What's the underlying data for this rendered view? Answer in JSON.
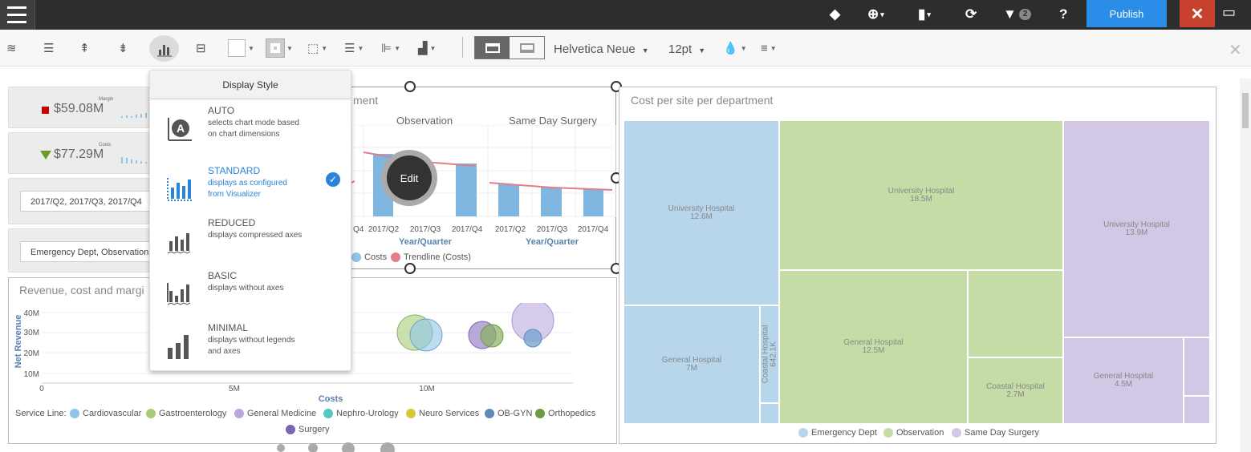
{
  "topbar": {
    "notification_count": "2",
    "publish_label": "Publish",
    "close_label": "✕"
  },
  "toolbar": {
    "font_name": "Helvetica Neue",
    "font_size": "12pt"
  },
  "kpis": [
    {
      "label": "Margin",
      "value": "$59.08M",
      "indicator_color": "#cc0000"
    },
    {
      "label": "Costs",
      "value": "$77.29M",
      "indicator_color": "#6a9a2a"
    }
  ],
  "filters": [
    {
      "value": "2017/Q2, 2017/Q3, 2017/Q4"
    },
    {
      "value": "Emergency Dept, Observation,"
    }
  ],
  "display_style": {
    "title": "Display Style",
    "options": [
      {
        "name": "AUTO",
        "desc": "selects chart mode based on chart dimensions",
        "selected": false
      },
      {
        "name": "STANDARD",
        "desc": "displays as configured from Visualizer",
        "selected": true
      },
      {
        "name": "REDUCED",
        "desc": "displays compressed axes",
        "selected": false
      },
      {
        "name": "BASIC",
        "desc": "displays without axes",
        "selected": false
      },
      {
        "name": "MINIMAL",
        "desc": "displays without legends and axes",
        "selected": false
      }
    ]
  },
  "cost_chart": {
    "title_fragment": "ment",
    "panels": [
      "Observation",
      "Same Day Surgery"
    ],
    "tick_partial": "Q4",
    "ticks": [
      "2017/Q2",
      "2017/Q3",
      "2017/Q4"
    ],
    "xlabel": "Year/Quarter",
    "legend": [
      "Costs",
      "Trendline (Costs)"
    ],
    "edit_label": "Edit"
  },
  "bubble_chart": {
    "title": "Revenue, cost and margi",
    "ylabel": "Net Revenue",
    "xlabel": "Costs",
    "yticks": [
      "40M",
      "30M",
      "20M",
      "10M"
    ],
    "xticks": [
      "0",
      "5M",
      "10M"
    ],
    "legend_prefix": "Service Line:",
    "legend": [
      {
        "name": "Cardiovascular",
        "color": "#8ec4e8"
      },
      {
        "name": "Gastroenterology",
        "color": "#a6cd7a"
      },
      {
        "name": "General Medicine",
        "color": "#b9a6dc"
      },
      {
        "name": "Nephro-Urology",
        "color": "#52c8c0"
      },
      {
        "name": "Neuro Services",
        "color": "#d6c838"
      },
      {
        "name": "OB-GYN",
        "color": "#5a8ab8"
      },
      {
        "name": "Orthopedics",
        "color": "#6e9a44"
      },
      {
        "name": "Surgery",
        "color": "#7a64b8"
      }
    ]
  },
  "treemap": {
    "title": "Cost per site per department",
    "cells": [
      {
        "site": "University Hospital",
        "value": "12.6M"
      },
      {
        "site": "General Hospital",
        "value": "7M"
      },
      {
        "site": "Coastal Hospital",
        "value": "642.1K"
      },
      {
        "site": "University Hospital",
        "value": "18.5M"
      },
      {
        "site": "General Hospital",
        "value": "12.5M"
      },
      {
        "site": "Coastal Hospital",
        "value": "2.7M"
      },
      {
        "site": "University Hospital",
        "value": "13.9M"
      },
      {
        "site": "General Hospital",
        "value": "4.5M"
      }
    ],
    "legend": [
      {
        "name": "Emergency Dept",
        "color": "#b7d6ec"
      },
      {
        "name": "Observation",
        "color": "#c6dca6"
      },
      {
        "name": "Same Day Surgery",
        "color": "#d3c7e6"
      }
    ]
  }
}
